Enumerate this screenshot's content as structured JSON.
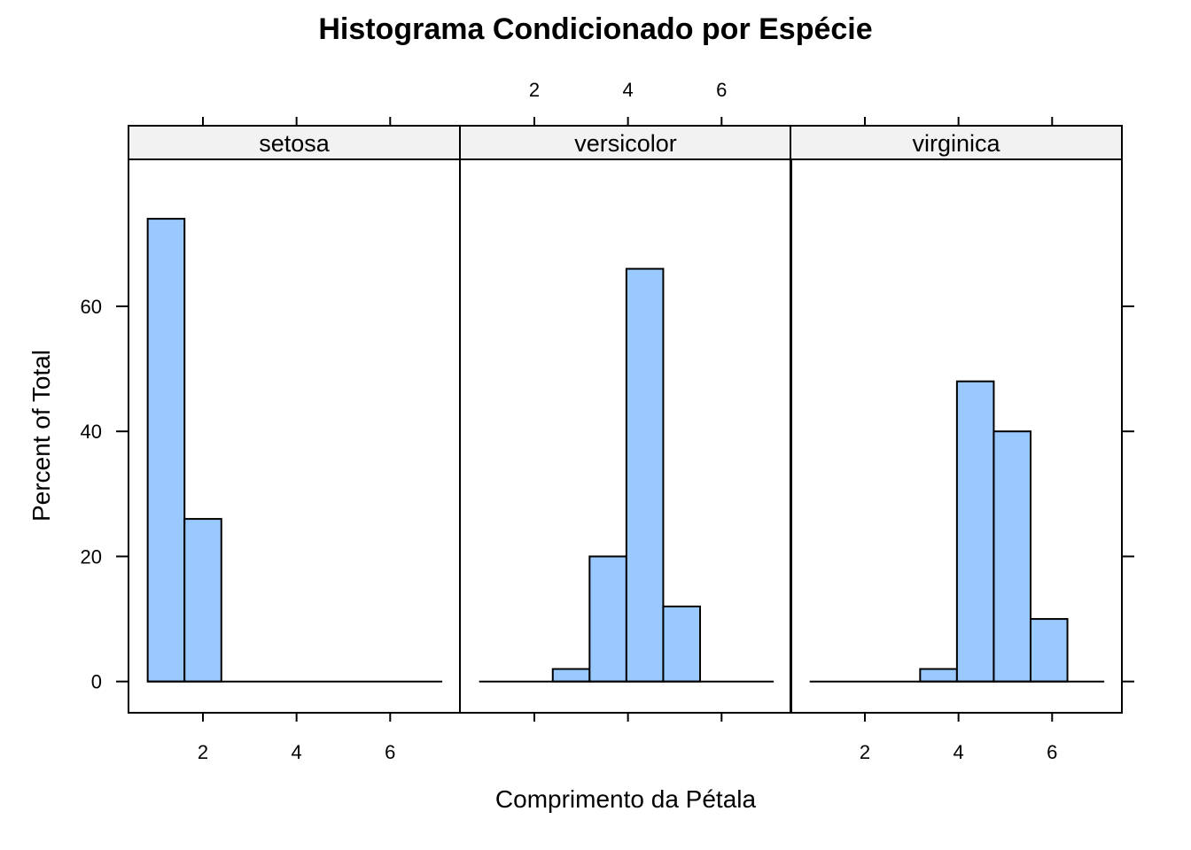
{
  "chart_data": {
    "type": "bar",
    "title": "Histograma Condicionado por Espécie",
    "xlabel": "Comprimento da Pétala",
    "ylabel": "Percent of Total",
    "xlim": [
      0.41,
      7.49
    ],
    "ylim": [
      -5,
      83.5
    ],
    "x_ticks": [
      2,
      4,
      6
    ],
    "y_ticks": [
      0,
      20,
      40,
      60
    ],
    "grid": false,
    "bar_fill": "#99c9ff",
    "strip_fill": "#f2f2f2",
    "bin_edges": [
      0.82,
      1.6066667,
      2.3933333,
      3.18,
      3.9666667,
      4.7533333,
      5.54,
      6.3266667,
      7.1133333
    ],
    "panels": [
      {
        "name": "setosa",
        "values": [
          74,
          26,
          0,
          0,
          0,
          0,
          0,
          0
        ]
      },
      {
        "name": "versicolor",
        "values": [
          0,
          0,
          2,
          20,
          66,
          12,
          0,
          0
        ]
      },
      {
        "name": "virginica",
        "values": [
          0,
          0,
          0,
          2,
          48,
          40,
          10,
          0
        ]
      }
    ]
  }
}
